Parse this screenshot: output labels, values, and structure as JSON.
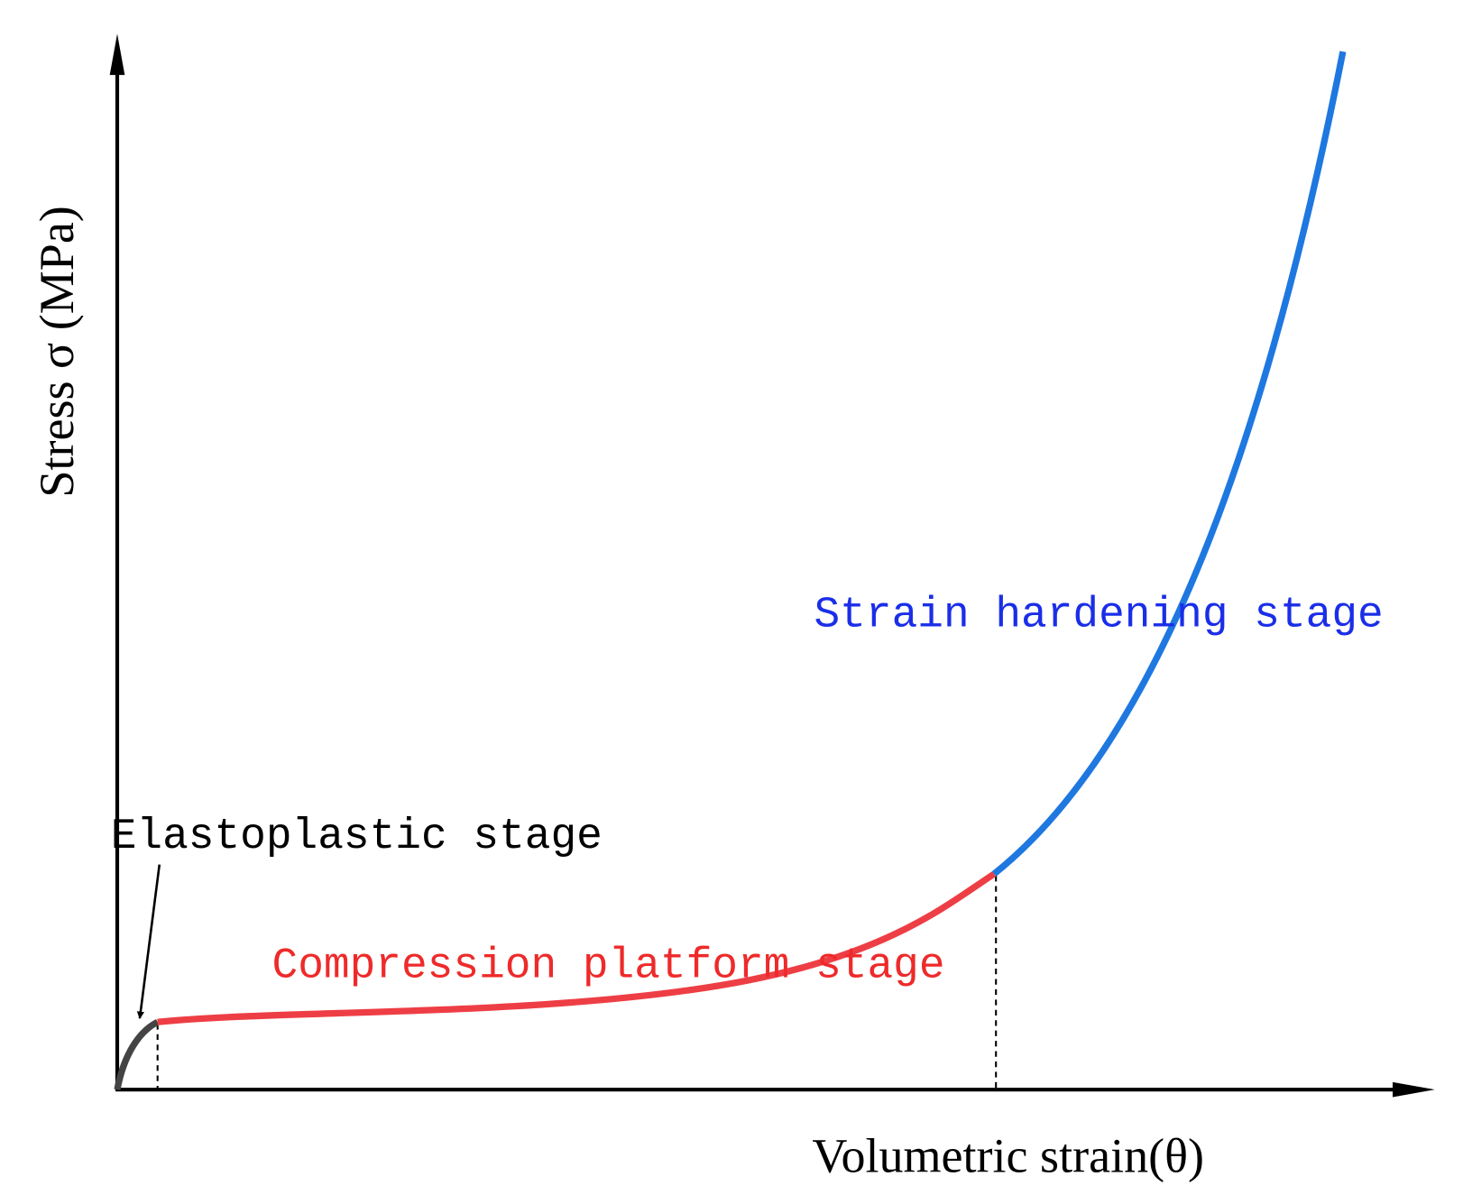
{
  "axes": {
    "y_label": "Stress σ (MPa)",
    "x_label": "Volumetric strain(θ)"
  },
  "stages": {
    "elastoplastic": "Elastoplastic stage",
    "compression_platform": "Compression platform stage",
    "strain_hardening": "Strain hardening stage"
  }
}
